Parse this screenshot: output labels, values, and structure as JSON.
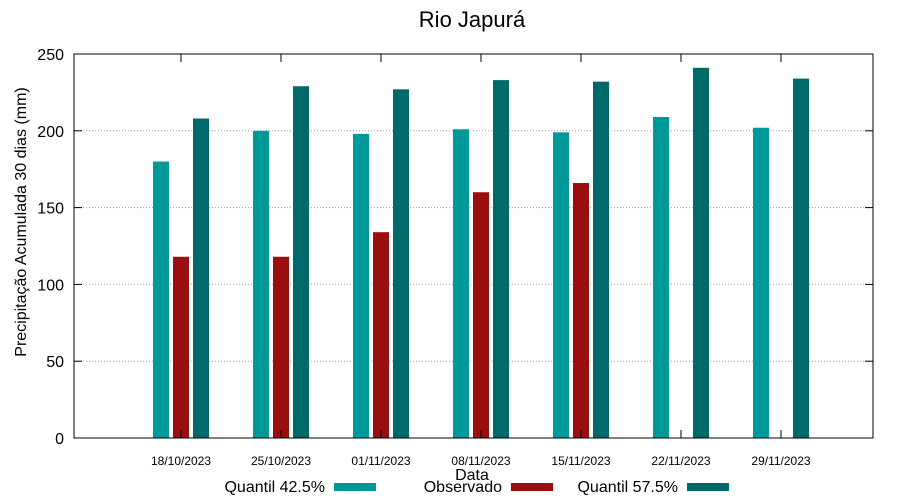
{
  "chart_data": {
    "type": "bar",
    "title": "Rio Japurá",
    "xlabel": "Data",
    "ylabel": "Precipitação Acumulada 30 dias (mm)",
    "ylim": [
      0,
      250
    ],
    "yticks": [
      0,
      50,
      100,
      150,
      200,
      250
    ],
    "grid": true,
    "legend_position": "bottom",
    "categories": [
      "18/10/2023",
      "25/10/2023",
      "01/11/2023",
      "08/11/2023",
      "15/11/2023",
      "22/11/2023",
      "29/11/2023"
    ],
    "series": [
      {
        "name": "Quantil 42.5%",
        "color": "#009999",
        "values": [
          180,
          200,
          198,
          201,
          199,
          209,
          202
        ]
      },
      {
        "name": "Observado",
        "color": "#990f0f",
        "values": [
          118,
          118,
          134,
          160,
          166,
          null,
          null
        ]
      },
      {
        "name": "Quantil 57.5%",
        "color": "#006a6a",
        "values": [
          208,
          229,
          227,
          233,
          232,
          241,
          234
        ]
      }
    ]
  }
}
